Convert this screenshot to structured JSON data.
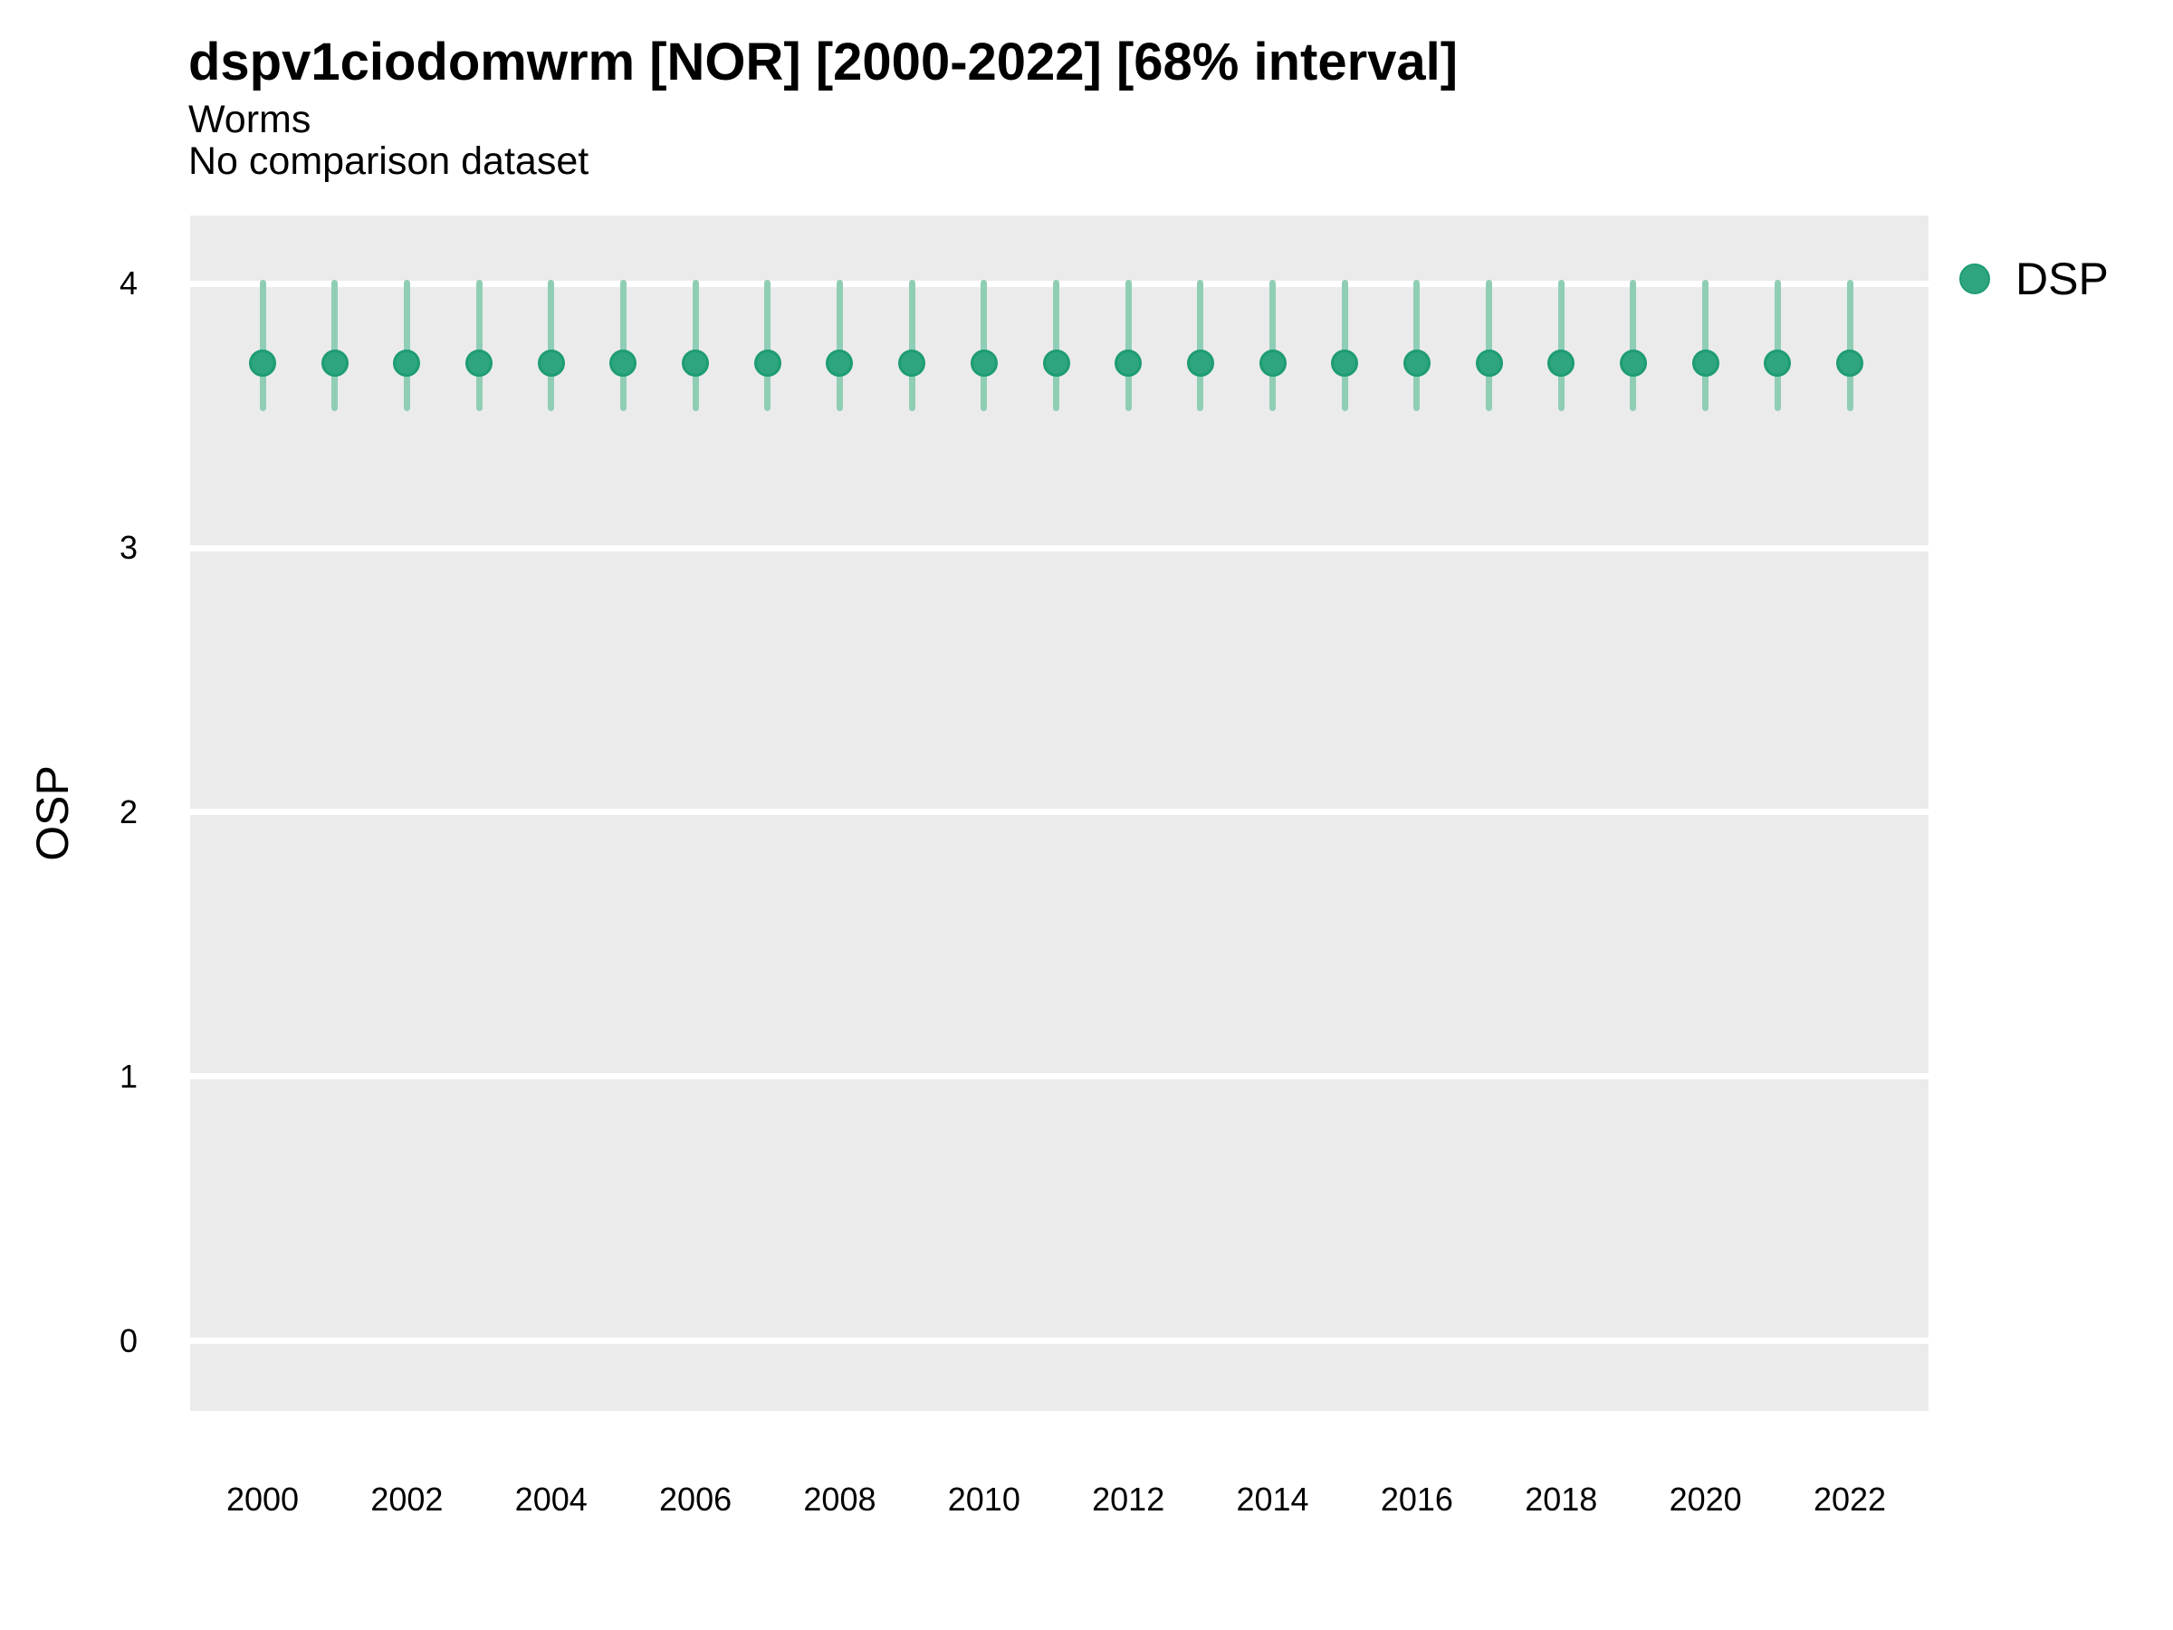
{
  "header": {
    "title": "dspv1ciodomwrm [NOR] [2000-2022] [68% interval]",
    "subtitle": "Worms",
    "note": "No comparison dataset"
  },
  "legend": {
    "label": "DSP",
    "position": "right"
  },
  "colors": {
    "panel_bg": "#EBEBEB",
    "grid": "#FFFFFF",
    "point_fill": "#2EA57F",
    "point_stroke": "#1E9C74",
    "interval_line": "#8FCEB5",
    "text": "#000000"
  },
  "chart_data": {
    "type": "scatter",
    "mark": "pointrange",
    "title": "dspv1ciodomwrm [NOR] [2000-2022] [68% interval]",
    "subtitle": "Worms",
    "note": "No comparison dataset",
    "xlabel": "",
    "ylabel": "OSP",
    "ylim": [
      -0.264,
      4.257
    ],
    "y_ticks": [
      0,
      1,
      2,
      3,
      4
    ],
    "grid": "horizontal-major-only",
    "legend_position": "right",
    "x": [
      2000,
      2001,
      2002,
      2003,
      2004,
      2005,
      2006,
      2007,
      2008,
      2009,
      2010,
      2011,
      2012,
      2013,
      2014,
      2015,
      2016,
      2017,
      2018,
      2019,
      2020,
      2021,
      2022
    ],
    "x_tick_labels": [
      "2000",
      "2002",
      "2004",
      "2006",
      "2008",
      "2010",
      "2012",
      "2014",
      "2016",
      "2018",
      "2020",
      "2022"
    ],
    "series": [
      {
        "name": "DSP",
        "point": [
          3.7,
          3.7,
          3.7,
          3.7,
          3.7,
          3.7,
          3.7,
          3.7,
          3.7,
          3.7,
          3.7,
          3.7,
          3.7,
          3.7,
          3.7,
          3.7,
          3.7,
          3.7,
          3.7,
          3.7,
          3.7,
          3.7,
          3.7
        ],
        "lo": [
          3.53,
          3.53,
          3.53,
          3.53,
          3.53,
          3.53,
          3.53,
          3.53,
          3.53,
          3.53,
          3.53,
          3.53,
          3.53,
          3.53,
          3.53,
          3.53,
          3.53,
          3.53,
          3.53,
          3.53,
          3.53,
          3.53,
          3.53
        ],
        "hi": [
          4.0,
          4.0,
          4.0,
          4.0,
          4.0,
          4.0,
          4.0,
          4.0,
          4.0,
          4.0,
          4.0,
          4.0,
          4.0,
          4.0,
          4.0,
          4.0,
          4.0,
          4.0,
          4.0,
          4.0,
          4.0,
          4.0,
          4.0
        ]
      }
    ]
  }
}
